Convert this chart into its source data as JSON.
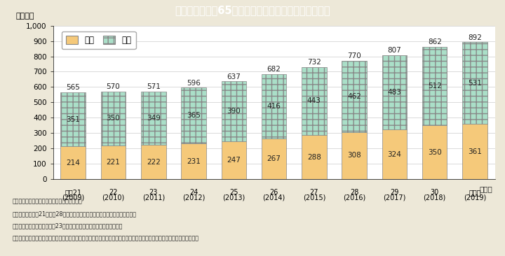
{
  "title": "Ｉ－５－８図　65歳以上の就業者数の推移（男女別）",
  "title_bg_color": "#17b8cc",
  "ylabel": "（万人）",
  "xlabel_year": "（年）",
  "categories_line1": [
    "平成21",
    "22",
    "23",
    "24",
    "25",
    "26",
    "27",
    "28",
    "29",
    "30",
    "令和元"
  ],
  "categories_line2": [
    "(2009)",
    "(2010)",
    "(2011)",
    "(2012)",
    "(2013)",
    "(2014)",
    "(2015)",
    "(2016)",
    "(2017)",
    "(2018)",
    "(2019)"
  ],
  "female": [
    214,
    221,
    222,
    231,
    247,
    267,
    288,
    308,
    324,
    350,
    361
  ],
  "male": [
    351,
    350,
    349,
    365,
    390,
    416,
    443,
    462,
    483,
    512,
    531
  ],
  "total": [
    565,
    570,
    571,
    596,
    637,
    682,
    732,
    770,
    807,
    862,
    892
  ],
  "female_color": "#f5c97a",
  "male_color": "#aadfc8",
  "ylim": [
    0,
    1000
  ],
  "yticks": [
    0,
    100,
    200,
    300,
    400,
    500,
    600,
    700,
    800,
    900,
    1000
  ],
  "bg_color": "#ede8d8",
  "plot_bg_color": "#ffffff",
  "legend_female": "女性",
  "legend_male": "男性",
  "note_lines": [
    "（備考）１．総務省「労働力調査」より作成。",
    "　　　　２．平成21年から28年までの値は，時系列接続用数値を用いている。",
    "　　　　３．就業者数の平成23年値は，総務省が補完的に推計した値。",
    "　　　　４．就業者数は，小数点第１位を四捨五入しているため，男性及び女性の合計数と就業者総数が異なる場合がある。"
  ]
}
